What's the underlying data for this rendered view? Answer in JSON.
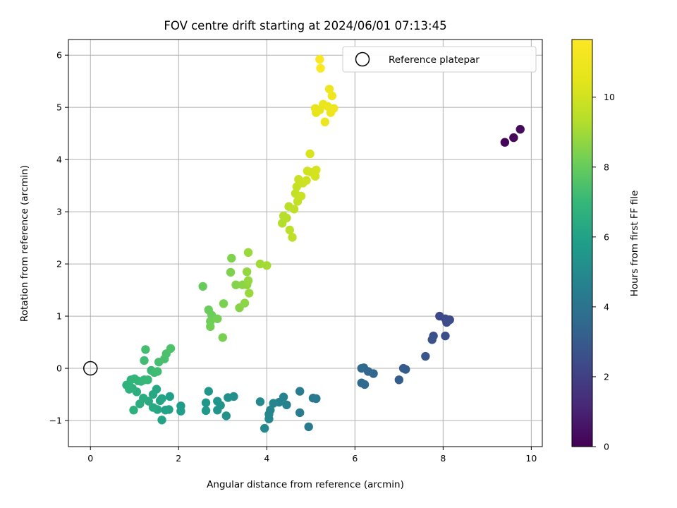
{
  "chart_data": {
    "type": "scatter",
    "title": "FOV centre drift starting at 2024/06/01 07:13:45",
    "xlabel": "Angular distance from reference (arcmin)",
    "ylabel": "Rotation from reference (arcmin)",
    "xlim": [
      -0.5,
      10.25
    ],
    "ylim": [
      -1.5,
      6.3
    ],
    "xticks": [
      "0",
      "2",
      "4",
      "6",
      "8",
      "10"
    ],
    "xtick_values": [
      0,
      2,
      4,
      6,
      8,
      10
    ],
    "yticks": [
      "−1",
      "0",
      "1",
      "2",
      "3",
      "4",
      "5",
      "6"
    ],
    "ytick_values": [
      -1,
      0,
      1,
      2,
      3,
      4,
      5,
      6
    ],
    "grid": true,
    "legend_position": "top-right",
    "legend": [
      {
        "label": "Reference platepar",
        "marker": "open-circle"
      }
    ],
    "reference_point": {
      "x": 0,
      "y": 0
    },
    "colorbar": {
      "label": "Hours from first FF file",
      "colormap": "viridis",
      "range": [
        0,
        11.65
      ],
      "ticks": [
        "0",
        "2",
        "4",
        "6",
        "8",
        "10"
      ],
      "tick_values": [
        0,
        2,
        4,
        6,
        8,
        10
      ]
    },
    "points": [
      {
        "x": 9.4,
        "y": 4.33,
        "c": 0.1
      },
      {
        "x": 9.6,
        "y": 4.42,
        "c": 0.2
      },
      {
        "x": 9.75,
        "y": 4.58,
        "c": 0.3
      },
      {
        "x": 7.92,
        "y": 1.0,
        "c": 2.3
      },
      {
        "x": 8.05,
        "y": 0.95,
        "c": 2.35
      },
      {
        "x": 8.15,
        "y": 0.93,
        "c": 2.4
      },
      {
        "x": 8.08,
        "y": 0.88,
        "c": 2.45
      },
      {
        "x": 8.05,
        "y": 0.62,
        "c": 2.5
      },
      {
        "x": 7.78,
        "y": 0.62,
        "c": 2.6
      },
      {
        "x": 7.75,
        "y": 0.55,
        "c": 2.7
      },
      {
        "x": 7.6,
        "y": 0.23,
        "c": 2.8
      },
      {
        "x": 7.1,
        "y": 0.0,
        "c": 3.0
      },
      {
        "x": 7.15,
        "y": -0.02,
        "c": 3.05
      },
      {
        "x": 7.0,
        "y": -0.22,
        "c": 3.1
      },
      {
        "x": 6.2,
        "y": 0.01,
        "c": 3.4
      },
      {
        "x": 6.3,
        "y": -0.06,
        "c": 3.45
      },
      {
        "x": 6.42,
        "y": -0.1,
        "c": 3.5
      },
      {
        "x": 6.15,
        "y": -0.28,
        "c": 3.55
      },
      {
        "x": 6.22,
        "y": -0.31,
        "c": 3.6
      },
      {
        "x": 6.15,
        "y": 0.0,
        "c": 3.65
      },
      {
        "x": 5.05,
        "y": -0.57,
        "c": 4.2
      },
      {
        "x": 5.12,
        "y": -0.58,
        "c": 4.25
      },
      {
        "x": 4.95,
        "y": -1.12,
        "c": 4.3
      },
      {
        "x": 4.75,
        "y": -0.44,
        "c": 4.35
      },
      {
        "x": 4.75,
        "y": -0.85,
        "c": 4.4
      },
      {
        "x": 4.45,
        "y": -0.7,
        "c": 4.6
      },
      {
        "x": 4.38,
        "y": -0.55,
        "c": 4.65
      },
      {
        "x": 4.28,
        "y": -0.65,
        "c": 4.7
      },
      {
        "x": 4.15,
        "y": -0.67,
        "c": 4.75
      },
      {
        "x": 4.08,
        "y": -0.8,
        "c": 4.8
      },
      {
        "x": 4.05,
        "y": -0.88,
        "c": 4.85
      },
      {
        "x": 4.05,
        "y": -0.97,
        "c": 4.9
      },
      {
        "x": 3.95,
        "y": -1.15,
        "c": 4.95
      },
      {
        "x": 3.85,
        "y": -0.64,
        "c": 5.0
      },
      {
        "x": 3.25,
        "y": -0.54,
        "c": 5.2
      },
      {
        "x": 3.12,
        "y": -0.56,
        "c": 5.25
      },
      {
        "x": 3.08,
        "y": -0.91,
        "c": 5.3
      },
      {
        "x": 2.95,
        "y": -0.71,
        "c": 5.35
      },
      {
        "x": 2.88,
        "y": -0.8,
        "c": 5.4
      },
      {
        "x": 2.88,
        "y": -0.63,
        "c": 5.45
      },
      {
        "x": 2.68,
        "y": -0.44,
        "c": 5.5
      },
      {
        "x": 2.62,
        "y": -0.66,
        "c": 5.55
      },
      {
        "x": 2.62,
        "y": -0.81,
        "c": 5.6
      },
      {
        "x": 2.05,
        "y": -0.72,
        "c": 5.8
      },
      {
        "x": 2.05,
        "y": -0.82,
        "c": 5.85
      },
      {
        "x": 1.8,
        "y": -0.54,
        "c": 5.9
      },
      {
        "x": 1.78,
        "y": -0.79,
        "c": 5.95
      },
      {
        "x": 1.7,
        "y": -0.8,
        "c": 6.0
      },
      {
        "x": 1.62,
        "y": -0.58,
        "c": 6.05
      },
      {
        "x": 1.62,
        "y": -0.99,
        "c": 6.1
      },
      {
        "x": 1.58,
        "y": -0.62,
        "c": 6.15
      },
      {
        "x": 1.52,
        "y": -0.79,
        "c": 6.2
      },
      {
        "x": 1.5,
        "y": -0.4,
        "c": 6.25
      },
      {
        "x": 1.42,
        "y": -0.5,
        "c": 6.3
      },
      {
        "x": 1.42,
        "y": -0.75,
        "c": 6.35
      },
      {
        "x": 1.32,
        "y": -0.63,
        "c": 6.4
      },
      {
        "x": 1.2,
        "y": -0.57,
        "c": 6.45
      },
      {
        "x": 1.12,
        "y": -0.68,
        "c": 6.5
      },
      {
        "x": 1.05,
        "y": -0.45,
        "c": 6.55
      },
      {
        "x": 0.98,
        "y": -0.8,
        "c": 6.6
      },
      {
        "x": 0.95,
        "y": -0.38,
        "c": 6.65
      },
      {
        "x": 0.88,
        "y": -0.4,
        "c": 6.7
      },
      {
        "x": 0.82,
        "y": -0.32,
        "c": 6.75
      },
      {
        "x": 0.92,
        "y": -0.22,
        "c": 6.8
      },
      {
        "x": 1.0,
        "y": -0.2,
        "c": 6.85
      },
      {
        "x": 1.08,
        "y": -0.24,
        "c": 6.9
      },
      {
        "x": 1.15,
        "y": -0.25,
        "c": 6.95
      },
      {
        "x": 1.22,
        "y": -0.22,
        "c": 7.0
      },
      {
        "x": 1.3,
        "y": -0.22,
        "c": 7.05
      },
      {
        "x": 1.38,
        "y": -0.04,
        "c": 7.1
      },
      {
        "x": 1.45,
        "y": -0.08,
        "c": 7.15
      },
      {
        "x": 1.52,
        "y": -0.06,
        "c": 7.2
      },
      {
        "x": 1.22,
        "y": 0.15,
        "c": 7.25
      },
      {
        "x": 1.25,
        "y": 0.36,
        "c": 7.3
      },
      {
        "x": 1.55,
        "y": 0.12,
        "c": 7.35
      },
      {
        "x": 1.68,
        "y": 0.18,
        "c": 7.4
      },
      {
        "x": 1.72,
        "y": 0.28,
        "c": 7.45
      },
      {
        "x": 1.82,
        "y": 0.38,
        "c": 7.5
      },
      {
        "x": 2.55,
        "y": 1.57,
        "c": 8.0
      },
      {
        "x": 2.68,
        "y": 1.12,
        "c": 8.05
      },
      {
        "x": 2.75,
        "y": 1.02,
        "c": 8.1
      },
      {
        "x": 2.72,
        "y": 0.9,
        "c": 8.15
      },
      {
        "x": 2.72,
        "y": 0.8,
        "c": 8.2
      },
      {
        "x": 2.88,
        "y": 0.95,
        "c": 8.25
      },
      {
        "x": 3.0,
        "y": 0.59,
        "c": 8.3
      },
      {
        "x": 3.02,
        "y": 1.24,
        "c": 8.35
      },
      {
        "x": 3.18,
        "y": 1.84,
        "c": 8.4
      },
      {
        "x": 3.2,
        "y": 2.11,
        "c": 8.45
      },
      {
        "x": 3.3,
        "y": 1.6,
        "c": 8.5
      },
      {
        "x": 3.38,
        "y": 1.16,
        "c": 8.55
      },
      {
        "x": 3.45,
        "y": 1.6,
        "c": 8.6
      },
      {
        "x": 3.5,
        "y": 1.25,
        "c": 8.65
      },
      {
        "x": 3.55,
        "y": 1.6,
        "c": 8.7
      },
      {
        "x": 3.55,
        "y": 1.85,
        "c": 8.75
      },
      {
        "x": 3.58,
        "y": 1.68,
        "c": 8.8
      },
      {
        "x": 3.6,
        "y": 1.44,
        "c": 8.85
      },
      {
        "x": 3.58,
        "y": 2.22,
        "c": 8.9
      },
      {
        "x": 3.85,
        "y": 2.0,
        "c": 9.0
      },
      {
        "x": 4.0,
        "y": 1.97,
        "c": 9.05
      },
      {
        "x": 4.35,
        "y": 2.78,
        "c": 9.3
      },
      {
        "x": 4.38,
        "y": 2.92,
        "c": 9.35
      },
      {
        "x": 4.45,
        "y": 2.88,
        "c": 9.4
      },
      {
        "x": 4.5,
        "y": 3.1,
        "c": 9.45
      },
      {
        "x": 4.52,
        "y": 2.65,
        "c": 9.5
      },
      {
        "x": 4.58,
        "y": 2.51,
        "c": 9.55
      },
      {
        "x": 4.62,
        "y": 3.05,
        "c": 9.6
      },
      {
        "x": 4.65,
        "y": 3.35,
        "c": 9.65
      },
      {
        "x": 4.7,
        "y": 3.2,
        "c": 9.7
      },
      {
        "x": 4.68,
        "y": 3.48,
        "c": 9.75
      },
      {
        "x": 4.72,
        "y": 3.62,
        "c": 9.8
      },
      {
        "x": 4.78,
        "y": 3.3,
        "c": 9.85
      },
      {
        "x": 4.82,
        "y": 3.55,
        "c": 9.9
      },
      {
        "x": 4.9,
        "y": 3.6,
        "c": 9.95
      },
      {
        "x": 4.92,
        "y": 3.78,
        "c": 10.0
      },
      {
        "x": 5.0,
        "y": 3.76,
        "c": 10.05
      },
      {
        "x": 5.1,
        "y": 3.68,
        "c": 10.1
      },
      {
        "x": 5.12,
        "y": 3.8,
        "c": 10.15
      },
      {
        "x": 4.98,
        "y": 4.11,
        "c": 10.2
      },
      {
        "x": 5.12,
        "y": 4.9,
        "c": 10.6
      },
      {
        "x": 5.1,
        "y": 4.98,
        "c": 10.65
      },
      {
        "x": 5.2,
        "y": 4.95,
        "c": 10.7
      },
      {
        "x": 5.28,
        "y": 5.06,
        "c": 10.75
      },
      {
        "x": 5.32,
        "y": 4.72,
        "c": 10.8
      },
      {
        "x": 5.38,
        "y": 5.02,
        "c": 10.85
      },
      {
        "x": 5.45,
        "y": 4.9,
        "c": 10.9
      },
      {
        "x": 5.42,
        "y": 5.35,
        "c": 10.95
      },
      {
        "x": 5.48,
        "y": 5.22,
        "c": 11.0
      },
      {
        "x": 5.52,
        "y": 4.98,
        "c": 11.05
      },
      {
        "x": 5.2,
        "y": 5.92,
        "c": 11.5
      },
      {
        "x": 5.22,
        "y": 5.75,
        "c": 11.6
      }
    ]
  }
}
